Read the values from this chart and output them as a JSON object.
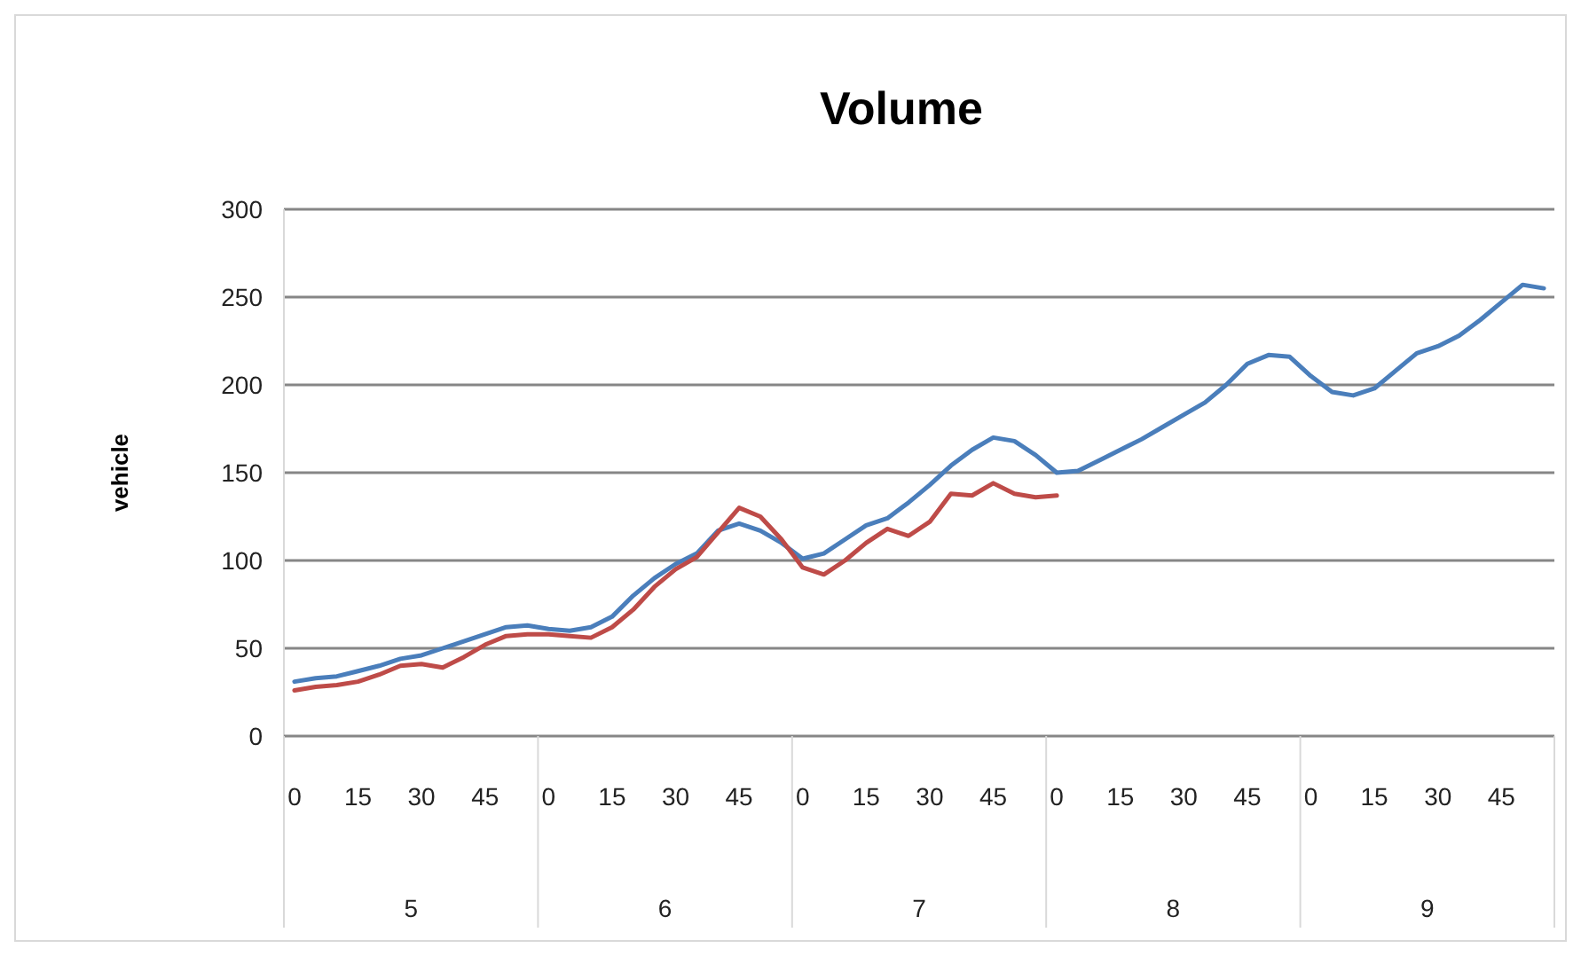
{
  "chart_data": {
    "type": "line",
    "title": "Volume",
    "ylabel": "vehicle",
    "categories": [
      "0",
      null,
      null,
      "15",
      null,
      null,
      "30",
      null,
      null,
      "45",
      null,
      null,
      "0",
      null,
      null,
      "15",
      null,
      null,
      "30",
      null,
      null,
      "45",
      null,
      null,
      "0",
      null,
      null,
      "15",
      null,
      null,
      "30",
      null,
      null,
      "45",
      null,
      null,
      "0",
      null,
      null,
      "15",
      null,
      null,
      "30",
      null,
      null,
      "45",
      null,
      null,
      "0",
      null,
      null,
      "15",
      null,
      null,
      "30",
      null,
      null,
      "45",
      null,
      null
    ],
    "series": [
      {
        "color": "#4a7ebb",
        "values": [
          31,
          33,
          34,
          37,
          40,
          44,
          46,
          50,
          54,
          58,
          62,
          63,
          61,
          60,
          62,
          68,
          80,
          90,
          98,
          104,
          117,
          121,
          117,
          110,
          101,
          104,
          112,
          120,
          124,
          133,
          143,
          154,
          163,
          170,
          168,
          160,
          150,
          151,
          157,
          163,
          169,
          176,
          183,
          190,
          200,
          212,
          217,
          216,
          205,
          196,
          194,
          198,
          208,
          218,
          222,
          228,
          237,
          247,
          257,
          255
        ]
      },
      {
        "color": "#be4b48",
        "values": [
          26,
          28,
          29,
          31,
          35,
          40,
          41,
          39,
          45,
          52,
          57,
          58,
          58,
          57,
          56,
          62,
          72,
          85,
          95,
          102,
          116,
          130,
          125,
          112,
          96,
          92,
          100,
          110,
          118,
          114,
          122,
          138,
          137,
          144,
          138,
          136,
          137,
          null,
          null,
          null,
          null,
          null,
          null,
          null,
          null,
          null,
          null,
          null,
          null,
          null,
          null,
          null,
          null,
          null,
          null,
          null,
          null,
          null,
          null,
          null
        ]
      }
    ],
    "ylim": [
      0,
      300
    ],
    "yticks": [
      0,
      50,
      100,
      150,
      200,
      250,
      300
    ],
    "grid": "y",
    "annotations": [
      "5",
      "6",
      "7",
      "8",
      "9"
    ]
  }
}
